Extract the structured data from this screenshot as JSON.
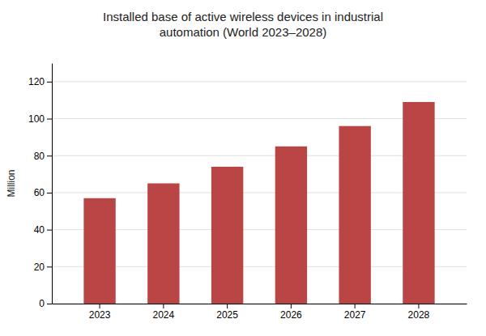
{
  "chart_data": {
    "type": "bar",
    "title": "Installed base of active wireless devices in industrial\nautomation (World 2023–2028)",
    "y_label": "Million",
    "categories": [
      "2023",
      "2024",
      "2025",
      "2026",
      "2027",
      "2028"
    ],
    "values": [
      57,
      65,
      74,
      85,
      96,
      109
    ],
    "color": "#b94545",
    "ylim": [
      0,
      130
    ],
    "yticks": [
      0,
      20,
      40,
      60,
      80,
      100,
      120
    ],
    "grid": true
  }
}
